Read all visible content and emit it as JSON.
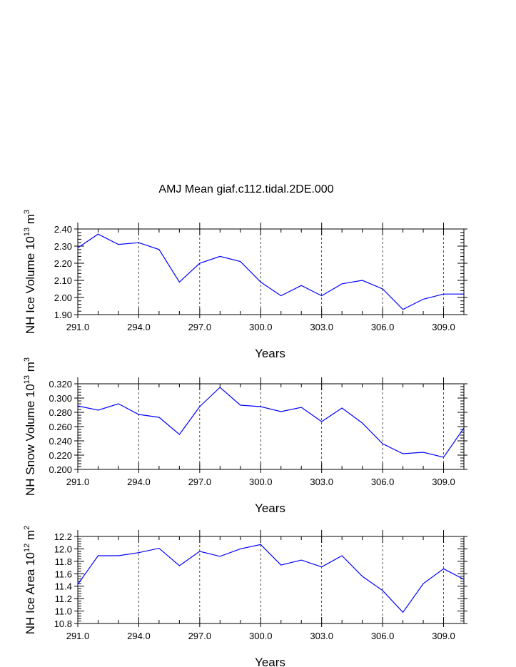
{
  "title": "AMJ Mean giaf.c112.tidal.2DE.000",
  "chart_data": [
    {
      "type": "line",
      "name": "ice-volume",
      "ylabel": {
        "base": "NH Ice Volume 10",
        "exp": "13",
        "unit": " m",
        "unit_exp": "3"
      },
      "xlabel": "Years",
      "xlim": [
        291,
        310
      ],
      "ylim": [
        1.9,
        2.4
      ],
      "xticks": [
        "291.0",
        "294.0",
        "297.0",
        "300.0",
        "303.0",
        "306.0",
        "309.0"
      ],
      "xtick_values": [
        291,
        294,
        297,
        300,
        303,
        306,
        309
      ],
      "yticks": [
        "1.90",
        "2.00",
        "2.10",
        "2.20",
        "2.30",
        "2.40"
      ],
      "ytick_values": [
        1.9,
        2.0,
        2.1,
        2.2,
        2.3,
        2.4
      ],
      "series_color": "#0000ff",
      "x": [
        291,
        292,
        293,
        294,
        295,
        296,
        297,
        298,
        299,
        300,
        301,
        302,
        303,
        304,
        305,
        306,
        307,
        308,
        309,
        310
      ],
      "y": [
        2.29,
        2.37,
        2.31,
        2.32,
        2.28,
        2.09,
        2.2,
        2.24,
        2.21,
        2.09,
        2.01,
        2.07,
        2.01,
        2.08,
        2.1,
        2.05,
        1.93,
        1.99,
        2.02,
        2.02
      ]
    },
    {
      "type": "line",
      "name": "snow-volume",
      "ylabel": {
        "base": "NH Snow Volume 10",
        "exp": "13",
        "unit": " m",
        "unit_exp": "3"
      },
      "xlabel": "Years",
      "xlim": [
        291,
        310
      ],
      "ylim": [
        0.2,
        0.32
      ],
      "xticks": [
        "291.0",
        "294.0",
        "297.0",
        "300.0",
        "303.0",
        "306.0",
        "309.0"
      ],
      "xtick_values": [
        291,
        294,
        297,
        300,
        303,
        306,
        309
      ],
      "yticks": [
        "0.200",
        "0.220",
        "0.240",
        "0.260",
        "0.280",
        "0.300",
        "0.320"
      ],
      "ytick_values": [
        0.2,
        0.22,
        0.24,
        0.26,
        0.28,
        0.3,
        0.32
      ],
      "series_color": "#0000ff",
      "x": [
        291,
        292,
        293,
        294,
        295,
        296,
        297,
        298,
        299,
        300,
        301,
        302,
        303,
        304,
        305,
        306,
        307,
        308,
        309,
        310
      ],
      "y": [
        0.289,
        0.283,
        0.292,
        0.277,
        0.273,
        0.249,
        0.288,
        0.315,
        0.29,
        0.288,
        0.281,
        0.287,
        0.267,
        0.286,
        0.265,
        0.236,
        0.222,
        0.224,
        0.217,
        0.258
      ]
    },
    {
      "type": "line",
      "name": "ice-area",
      "ylabel": {
        "base": "NH Ice Area 10",
        "exp": "12",
        "unit": " m",
        "unit_exp": "2"
      },
      "xlabel": "Years",
      "xlim": [
        291,
        310
      ],
      "ylim": [
        10.8,
        12.2
      ],
      "xticks": [
        "291.0",
        "294.0",
        "297.0",
        "300.0",
        "303.0",
        "306.0",
        "309.0"
      ],
      "xtick_values": [
        291,
        294,
        297,
        300,
        303,
        306,
        309
      ],
      "yticks": [
        "10.8",
        "11.0",
        "11.2",
        "11.4",
        "11.6",
        "11.8",
        "12.0",
        "12.2"
      ],
      "ytick_values": [
        10.8,
        11.0,
        11.2,
        11.4,
        11.6,
        11.8,
        12.0,
        12.2
      ],
      "series_color": "#0000ff",
      "x": [
        291,
        292,
        293,
        294,
        295,
        296,
        297,
        298,
        299,
        300,
        301,
        302,
        303,
        304,
        305,
        306,
        307,
        308,
        309,
        310
      ],
      "y": [
        11.43,
        11.89,
        11.89,
        11.94,
        12.01,
        11.73,
        11.96,
        11.88,
        12.0,
        12.07,
        11.74,
        11.82,
        11.71,
        11.89,
        11.56,
        11.33,
        10.98,
        11.44,
        11.68,
        11.51
      ]
    }
  ]
}
